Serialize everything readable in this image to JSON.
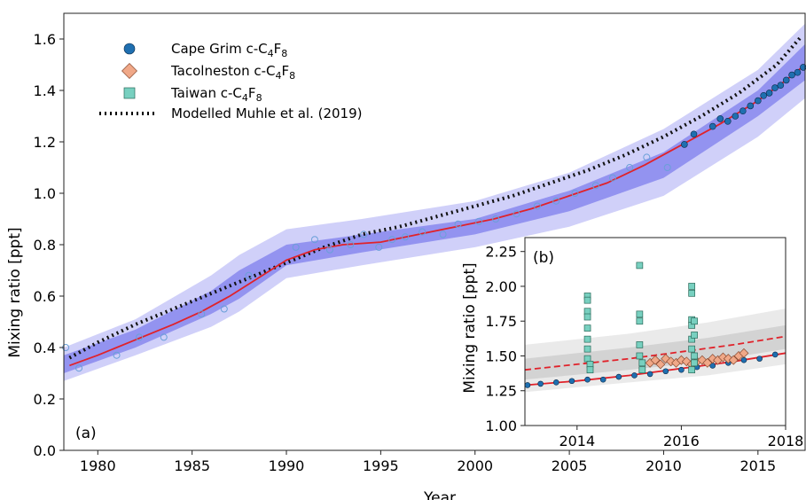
{
  "chart_data": [
    {
      "panel": "(a)",
      "type": "line",
      "xlabel": "Year",
      "ylabel": "Mixing ratio [ppt]",
      "xlim": [
        1978.2,
        2017.5
      ],
      "ylim": [
        0.0,
        1.7
      ],
      "xticks": [
        1980,
        1985,
        1990,
        1995,
        2000,
        2005,
        2010,
        2015
      ],
      "yticks": [
        0.0,
        0.2,
        0.4,
        0.6,
        0.8,
        1.0,
        1.2,
        1.4,
        1.6
      ],
      "legend": {
        "position": "upper-left",
        "entries": [
          {
            "label_main": "Cape Grim c-C",
            "sub1": "4",
            "mid": "F",
            "sub2": "8",
            "marker": "circle",
            "color": "#1f6fb0"
          },
          {
            "label_main": "Tacolneston c-C",
            "sub1": "4",
            "mid": "F",
            "sub2": "8",
            "marker": "diamond",
            "color": "#f0a888"
          },
          {
            "label_main": "Taiwan c-C",
            "sub1": "4",
            "mid": "F",
            "sub2": "8",
            "marker": "square",
            "color": "#78d0c0"
          },
          {
            "label_main": "Modelled Muhle et al. (2019)",
            "marker": "dotted-line",
            "color": "#000000"
          }
        ]
      },
      "series": [
        {
          "name": "Modelled Muhle et al. (2019)",
          "style": "dotted",
          "color": "#111111",
          "x": [
            1978.5,
            1980,
            1982,
            1984,
            1986,
            1988,
            1990,
            1992,
            1994,
            1996,
            1998,
            2000,
            2002,
            2004,
            2006,
            2008,
            2010,
            2012,
            2014,
            2016,
            2017.3
          ],
          "y": [
            0.36,
            0.42,
            0.49,
            0.55,
            0.61,
            0.67,
            0.73,
            0.79,
            0.84,
            0.87,
            0.91,
            0.95,
            0.99,
            1.04,
            1.09,
            1.15,
            1.22,
            1.3,
            1.39,
            1.5,
            1.61
          ]
        },
        {
          "name": "model fit",
          "style": "solid",
          "color": "#e0222a",
          "x": [
            1978.5,
            1980,
            1982,
            1984,
            1985.5,
            1987,
            1988.5,
            1990,
            1991.5,
            1993,
            1995,
            1997,
            1999,
            2001,
            2003,
            2005,
            2007,
            2009,
            2011,
            2013,
            2015,
            2016.5,
            2017.5
          ],
          "y": [
            0.33,
            0.37,
            0.43,
            0.49,
            0.54,
            0.6,
            0.67,
            0.74,
            0.78,
            0.8,
            0.81,
            0.84,
            0.87,
            0.9,
            0.94,
            0.99,
            1.04,
            1.11,
            1.19,
            1.27,
            1.36,
            1.44,
            1.5
          ]
        },
        {
          "name": "Cape Grim c-C4F8",
          "style": "markers",
          "color": "#1f6fb0",
          "x": [
            2011.1,
            2011.6,
            2012.6,
            2013.0,
            2013.4,
            2013.8,
            2014.2,
            2014.6,
            2015.0,
            2015.3,
            2015.6,
            2015.9,
            2016.2,
            2016.5,
            2016.8,
            2017.1,
            2017.4
          ],
          "y": [
            1.19,
            1.23,
            1.26,
            1.29,
            1.28,
            1.3,
            1.32,
            1.34,
            1.36,
            1.38,
            1.39,
            1.41,
            1.42,
            1.44,
            1.46,
            1.47,
            1.49
          ]
        },
        {
          "name": "archive samples",
          "style": "open-circles",
          "color": "#6aa0d8",
          "x": [
            1978.3,
            1979.0,
            1981.0,
            1982.2,
            1983.5,
            1985.5,
            1986.7,
            1988.0,
            1990.5,
            1991.5,
            1992.3,
            1993.4,
            1994.1,
            1994.9,
            1995.6,
            1996.3,
            1997.2,
            1998.3,
            1999.1,
            2000.2,
            2001.1,
            2002.2,
            2003.3,
            2004.3,
            2005.3,
            2006.4,
            2007.3,
            2008.2,
            2009.1,
            2010.2
          ],
          "y": [
            0.4,
            0.32,
            0.37,
            0.44,
            0.44,
            0.53,
            0.55,
            0.68,
            0.79,
            0.82,
            0.78,
            0.8,
            0.84,
            0.79,
            0.82,
            0.83,
            0.85,
            0.84,
            0.88,
            0.89,
            0.9,
            0.92,
            0.95,
            0.97,
            1.0,
            1.03,
            1.06,
            1.1,
            1.14,
            1.1
          ]
        },
        {
          "name": "uncertainty inner",
          "style": "band",
          "color": "#8888ee",
          "x": [
            1978.2,
            1982,
            1986,
            1987.5,
            1990,
            1994,
            2000,
            2005,
            2010,
            2015,
            2017.5
          ],
          "upper": [
            0.37,
            0.47,
            0.62,
            0.7,
            0.8,
            0.84,
            0.9,
            1.01,
            1.16,
            1.4,
            1.58
          ],
          "lower": [
            0.3,
            0.4,
            0.53,
            0.59,
            0.72,
            0.77,
            0.84,
            0.93,
            1.06,
            1.3,
            1.44
          ]
        },
        {
          "name": "uncertainty outer",
          "style": "band",
          "color": "#c8c8f8",
          "x": [
            1978.2,
            1982,
            1986,
            1987.5,
            1990,
            1994,
            2000,
            2005,
            2010,
            2015,
            2017.5
          ],
          "upper": [
            0.4,
            0.51,
            0.68,
            0.76,
            0.86,
            0.9,
            0.97,
            1.08,
            1.25,
            1.48,
            1.66
          ],
          "lower": [
            0.27,
            0.37,
            0.48,
            0.54,
            0.67,
            0.72,
            0.79,
            0.87,
            0.99,
            1.22,
            1.37
          ]
        }
      ],
      "annotation": "(a)"
    },
    {
      "panel": "(b)",
      "type": "scatter",
      "ylabel": "Mixing ratio [ppt]",
      "xlim": [
        2013.0,
        2018.0
      ],
      "ylim": [
        1.0,
        2.35
      ],
      "xticks": [
        2014,
        2016,
        2018
      ],
      "yticks": [
        1.0,
        1.25,
        1.5,
        1.75,
        2.0,
        2.25
      ],
      "ytick_labels": [
        "1.00",
        "1.25",
        "1.50",
        "1.75",
        "2.00",
        "2.25"
      ],
      "series": [
        {
          "name": "fit",
          "style": "solid",
          "color": "#e0222a",
          "x": [
            2013.0,
            2014.0,
            2015.0,
            2016.0,
            2017.0,
            2018.0
          ],
          "y": [
            1.29,
            1.32,
            1.36,
            1.41,
            1.46,
            1.52
          ]
        },
        {
          "name": "regional baseline",
          "style": "dashed",
          "color": "#e0222a",
          "x": [
            2013.0,
            2014.0,
            2015.0,
            2016.0,
            2017.0,
            2018.0
          ],
          "y": [
            1.4,
            1.44,
            1.48,
            1.53,
            1.58,
            1.64
          ]
        },
        {
          "name": "Cape Grim c-C4F8",
          "style": "markers",
          "color": "#1f6fb0",
          "x": [
            2013.05,
            2013.3,
            2013.6,
            2013.9,
            2014.2,
            2014.5,
            2014.8,
            2015.1,
            2015.4,
            2015.7,
            2016.0,
            2016.3,
            2016.6,
            2016.9,
            2017.2,
            2017.5,
            2017.8
          ],
          "y": [
            1.29,
            1.3,
            1.31,
            1.32,
            1.33,
            1.33,
            1.35,
            1.36,
            1.37,
            1.39,
            1.4,
            1.42,
            1.43,
            1.45,
            1.47,
            1.48,
            1.51
          ]
        },
        {
          "name": "Tacolneston c-C4F8",
          "style": "markers",
          "color": "#f0a888",
          "x": [
            2015.4,
            2015.5,
            2015.6,
            2015.7,
            2015.8,
            2015.9,
            2016.0,
            2016.1,
            2016.2,
            2016.3,
            2016.4,
            2016.5,
            2016.6,
            2016.7,
            2016.8,
            2016.9,
            2017.0,
            2017.1,
            2017.2
          ],
          "y": [
            1.45,
            1.47,
            1.44,
            1.48,
            1.46,
            1.45,
            1.47,
            1.46,
            1.44,
            1.46,
            1.47,
            1.45,
            1.48,
            1.47,
            1.49,
            1.48,
            1.47,
            1.5,
            1.52
          ]
        },
        {
          "name": "Taiwan c-C4F8",
          "style": "markers",
          "color": "#78d0c0",
          "x": [
            2014.2,
            2014.2,
            2014.2,
            2014.2,
            2014.2,
            2014.2,
            2014.2,
            2014.2,
            2014.25,
            2014.25,
            2015.2,
            2015.2,
            2015.2,
            2015.2,
            2015.2,
            2015.25,
            2015.25,
            2016.2,
            2016.2,
            2016.2,
            2016.2,
            2016.2,
            2016.2,
            2016.25,
            2016.25,
            2016.25,
            2016.25,
            2016.2
          ],
          "y": [
            1.93,
            1.9,
            1.82,
            1.78,
            1.7,
            1.62,
            1.55,
            1.48,
            1.44,
            1.4,
            2.15,
            1.8,
            1.75,
            1.58,
            1.5,
            1.45,
            1.4,
            2.0,
            1.95,
            1.76,
            1.72,
            1.62,
            1.55,
            1.75,
            1.65,
            1.5,
            1.45,
            1.4
          ]
        },
        {
          "name": "inner band",
          "style": "band",
          "color": "#cfcfcf",
          "x": [
            2013.0,
            2015.0,
            2016.5,
            2018.0
          ],
          "upper": [
            1.48,
            1.56,
            1.63,
            1.72
          ],
          "lower": [
            1.33,
            1.4,
            1.46,
            1.55
          ]
        },
        {
          "name": "outer band",
          "style": "band",
          "color": "#e6e6e6",
          "x": [
            2013.0,
            2015.0,
            2016.5,
            2018.0
          ],
          "upper": [
            1.58,
            1.66,
            1.74,
            1.84
          ],
          "lower": [
            1.24,
            1.31,
            1.36,
            1.44
          ]
        }
      ],
      "annotation": "(b)"
    }
  ]
}
